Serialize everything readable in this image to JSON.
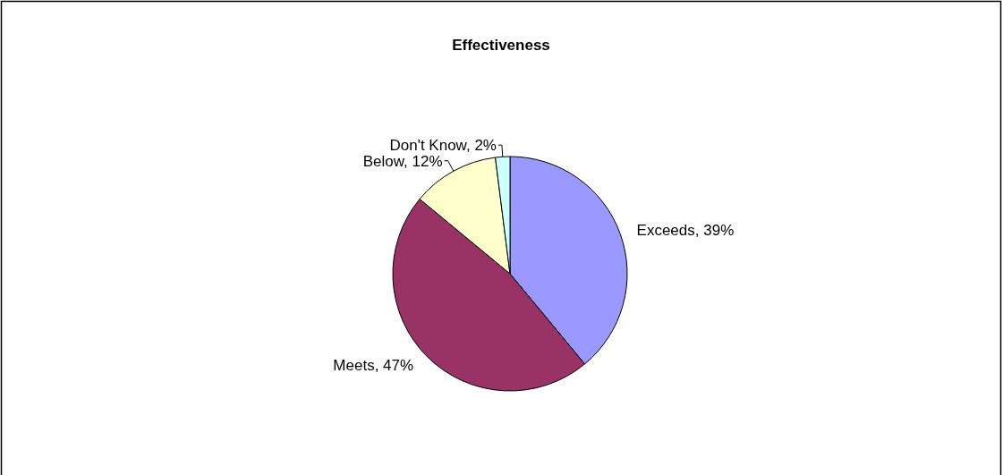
{
  "chart_data": {
    "type": "pie",
    "title": "Effectiveness",
    "categories": [
      "Exceeds",
      "Meets",
      "Below",
      "Don't Know"
    ],
    "values": [
      39,
      47,
      12,
      2
    ],
    "value_labels": [
      "39%",
      "47%",
      "12%",
      "2%"
    ],
    "colors": [
      "#9999ff",
      "#993366",
      "#ffffcc",
      "#ccffff"
    ]
  }
}
